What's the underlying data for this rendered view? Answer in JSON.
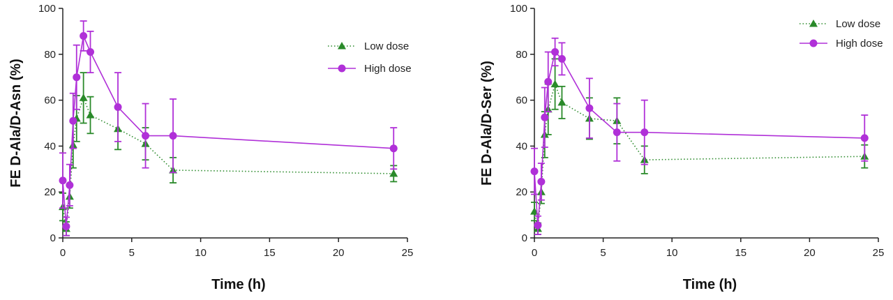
{
  "chart_data": [
    {
      "type": "line",
      "xlabel": "Time (h)",
      "ylabel": "FE D-Ala/D-Asn (%)",
      "xlim": [
        0,
        25
      ],
      "ylim": [
        0,
        100
      ],
      "xticks": [
        0,
        5,
        10,
        15,
        20,
        25
      ],
      "yticks": [
        0,
        20,
        40,
        60,
        80,
        100
      ],
      "grid": false,
      "legend_position": "top-right",
      "series": [
        {
          "name": "Low dose",
          "color": "#2a8a2a",
          "marker": "triangle",
          "line_style": "dotted",
          "points": [
            {
              "x": 0,
              "y": 13.5,
              "err": 6
            },
            {
              "x": 0.25,
              "y": 4,
              "err": 3
            },
            {
              "x": 0.5,
              "y": 18,
              "err": 5
            },
            {
              "x": 0.75,
              "y": 40.5,
              "err": 10
            },
            {
              "x": 1,
              "y": 52,
              "err": 10
            },
            {
              "x": 1.5,
              "y": 61,
              "err": 11
            },
            {
              "x": 2,
              "y": 53.5,
              "err": 8
            },
            {
              "x": 4,
              "y": 47.5,
              "err": 9
            },
            {
              "x": 6,
              "y": 41,
              "err": 7
            },
            {
              "x": 8,
              "y": 29.5,
              "err": 5.5
            },
            {
              "x": 24,
              "y": 28,
              "err": 3.5
            }
          ]
        },
        {
          "name": "High dose",
          "color": "#b030d8",
          "marker": "circle",
          "line_style": "solid",
          "points": [
            {
              "x": 0,
              "y": 25,
              "err": 12
            },
            {
              "x": 0.25,
              "y": 5,
              "err": 4
            },
            {
              "x": 0.5,
              "y": 23,
              "err": 9
            },
            {
              "x": 0.75,
              "y": 51,
              "err": 12
            },
            {
              "x": 1,
              "y": 70,
              "err": 14
            },
            {
              "x": 1.5,
              "y": 88,
              "err": 6.5
            },
            {
              "x": 2,
              "y": 81,
              "err": 9
            },
            {
              "x": 4,
              "y": 57,
              "err": 15
            },
            {
              "x": 6,
              "y": 44.5,
              "err": 14
            },
            {
              "x": 8,
              "y": 44.5,
              "err": 16
            },
            {
              "x": 24,
              "y": 39,
              "err": 9
            }
          ]
        }
      ]
    },
    {
      "type": "line",
      "xlabel": "Time (h)",
      "ylabel": "FE D-Ala/D-Ser (%)",
      "xlim": [
        0,
        25
      ],
      "ylim": [
        0,
        100
      ],
      "xticks": [
        0,
        5,
        10,
        15,
        20,
        25
      ],
      "yticks": [
        0,
        20,
        40,
        60,
        80,
        100
      ],
      "grid": false,
      "legend_position": "top-right",
      "series": [
        {
          "name": "Low dose",
          "color": "#2a8a2a",
          "marker": "triangle",
          "line_style": "dotted",
          "points": [
            {
              "x": 0,
              "y": 11.5,
              "err": 4
            },
            {
              "x": 0.25,
              "y": 4,
              "err": 2.5
            },
            {
              "x": 0.5,
              "y": 20,
              "err": 5
            },
            {
              "x": 0.75,
              "y": 45,
              "err": 10
            },
            {
              "x": 1,
              "y": 56,
              "err": 11
            },
            {
              "x": 1.5,
              "y": 67,
              "err": 11
            },
            {
              "x": 2,
              "y": 59,
              "err": 7
            },
            {
              "x": 4,
              "y": 52,
              "err": 9
            },
            {
              "x": 6,
              "y": 51,
              "err": 10
            },
            {
              "x": 8,
              "y": 34,
              "err": 6
            },
            {
              "x": 24,
              "y": 35.5,
              "err": 5
            }
          ]
        },
        {
          "name": "High dose",
          "color": "#b030d8",
          "marker": "circle",
          "line_style": "solid",
          "points": [
            {
              "x": 0,
              "y": 29,
              "err": 10
            },
            {
              "x": 0.25,
              "y": 5.5,
              "err": 4
            },
            {
              "x": 0.5,
              "y": 24.5,
              "err": 8
            },
            {
              "x": 0.75,
              "y": 52.5,
              "err": 13
            },
            {
              "x": 1,
              "y": 68,
              "err": 13
            },
            {
              "x": 1.5,
              "y": 81,
              "err": 6
            },
            {
              "x": 2,
              "y": 78,
              "err": 7
            },
            {
              "x": 4,
              "y": 56.5,
              "err": 13
            },
            {
              "x": 6,
              "y": 46,
              "err": 12.5
            },
            {
              "x": 8,
              "y": 46,
              "err": 14
            },
            {
              "x": 24,
              "y": 43.5,
              "err": 10
            }
          ]
        }
      ]
    }
  ]
}
